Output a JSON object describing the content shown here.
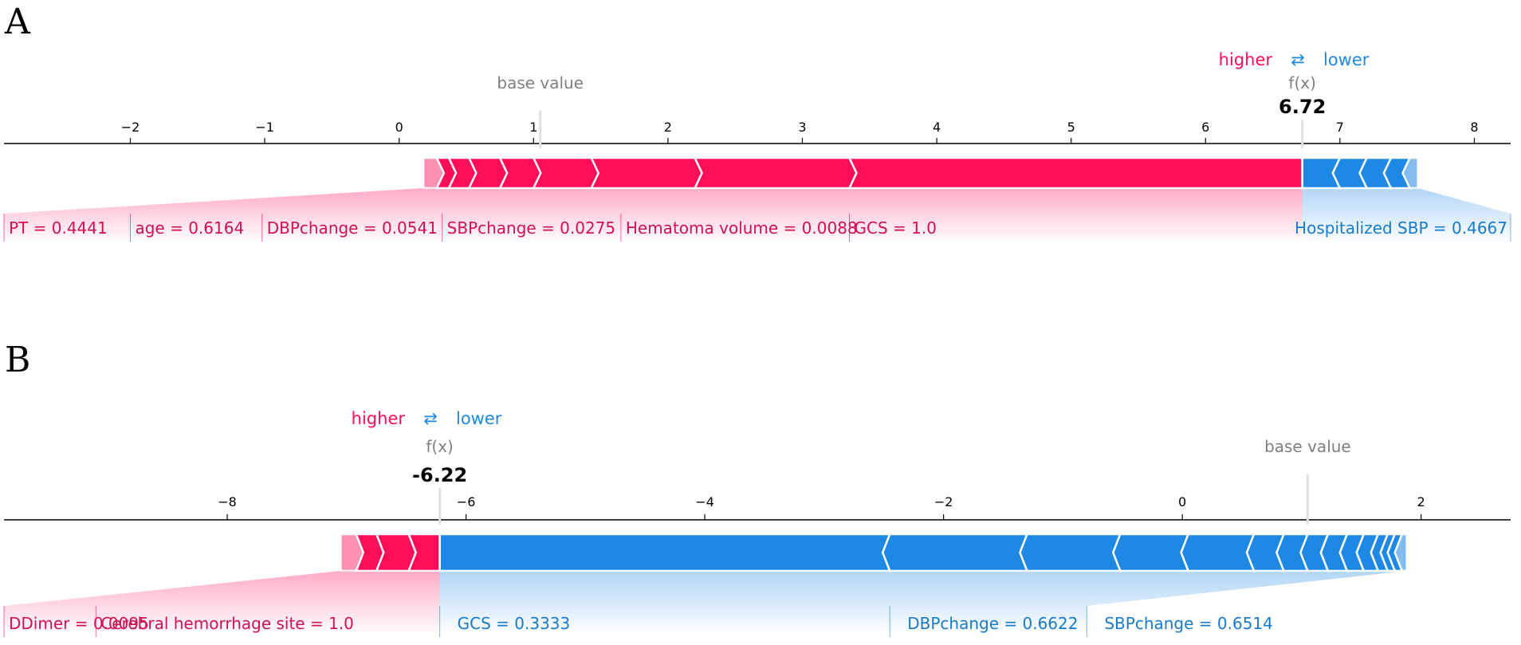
{
  "chart_data": [
    {
      "type": "force",
      "panel_label": "A",
      "legend": {
        "higher": "higher",
        "arrow": "⇄",
        "lower": "lower"
      },
      "fx_label": "f(x)",
      "fx_value": "6.72",
      "base_value_label": "base value",
      "base_value": 1.05,
      "output_value": 6.72,
      "x_ticks": [
        -2,
        -1,
        0,
        1,
        2,
        3,
        4,
        5,
        6,
        7,
        8
      ],
      "x_tick_labels": [
        "−2",
        "−1",
        "0",
        "1",
        "2",
        "3",
        "4",
        "5",
        "6",
        "7",
        "8"
      ],
      "xlim": [
        -2.94,
        8.27
      ],
      "positive": {
        "color": "#ff0d57",
        "boundaries": [
          0.18,
          0.28,
          0.37,
          0.52,
          0.75,
          1.0,
          1.43,
          2.2,
          3.35,
          6.72
        ],
        "labels": [
          {
            "text": "PT = 0.4441",
            "anchor": -2.94
          },
          {
            "text": "age = 0.6164",
            "anchor": -2.0
          },
          {
            "text": "DBPchange = 0.0541",
            "anchor": -1.02
          },
          {
            "text": "SBPchange = 0.0275",
            "anchor": 0.32
          },
          {
            "text": "Hematoma volume = 0.0088",
            "anchor": 1.65
          },
          {
            "text": "GCS = 1.0",
            "anchor": 3.35
          }
        ]
      },
      "negative": {
        "color": "#1e88e5",
        "boundaries": [
          6.72,
          7.0,
          7.2,
          7.38,
          7.52,
          7.58
        ],
        "labels": [
          {
            "text": "Hospitalized SBP = 0.4667",
            "anchor": 8.27
          }
        ]
      }
    },
    {
      "type": "force",
      "panel_label": "B",
      "legend": {
        "higher": "higher",
        "arrow": "⇄",
        "lower": "lower"
      },
      "fx_label": "f(x)",
      "fx_value": "-6.22",
      "base_value_label": "base value",
      "base_value": 1.05,
      "output_value": -6.22,
      "x_ticks": [
        -8,
        -6,
        -4,
        -2,
        0,
        2
      ],
      "x_tick_labels": [
        "−8",
        "−6",
        "−4",
        "−2",
        "0",
        "2"
      ],
      "xlim": [
        -9.87,
        2.75
      ],
      "positive": {
        "color": "#ff0d57",
        "boundaries": [
          -7.05,
          -6.92,
          -6.75,
          -6.48,
          -6.22
        ],
        "labels": [
          {
            "text": "DDimer = 0.0095",
            "anchor": -9.87
          },
          {
            "text": "Cerebral hemorrhage site = 1.0",
            "anchor": -9.1
          }
        ]
      },
      "negative": {
        "color": "#1e88e5",
        "boundaries": [
          -6.22,
          -2.45,
          -1.3,
          -0.52,
          0.05,
          0.6,
          0.85,
          1.05,
          1.22,
          1.38,
          1.52,
          1.64,
          1.72,
          1.78,
          1.84,
          1.88
        ],
        "labels": [
          {
            "text": "GCS = 0.3333",
            "anchor": -6.22
          },
          {
            "text": "DBPchange = 0.6622",
            "anchor": -2.45
          },
          {
            "text": "SBPchange = 0.6514",
            "anchor": -0.8
          }
        ]
      }
    }
  ]
}
